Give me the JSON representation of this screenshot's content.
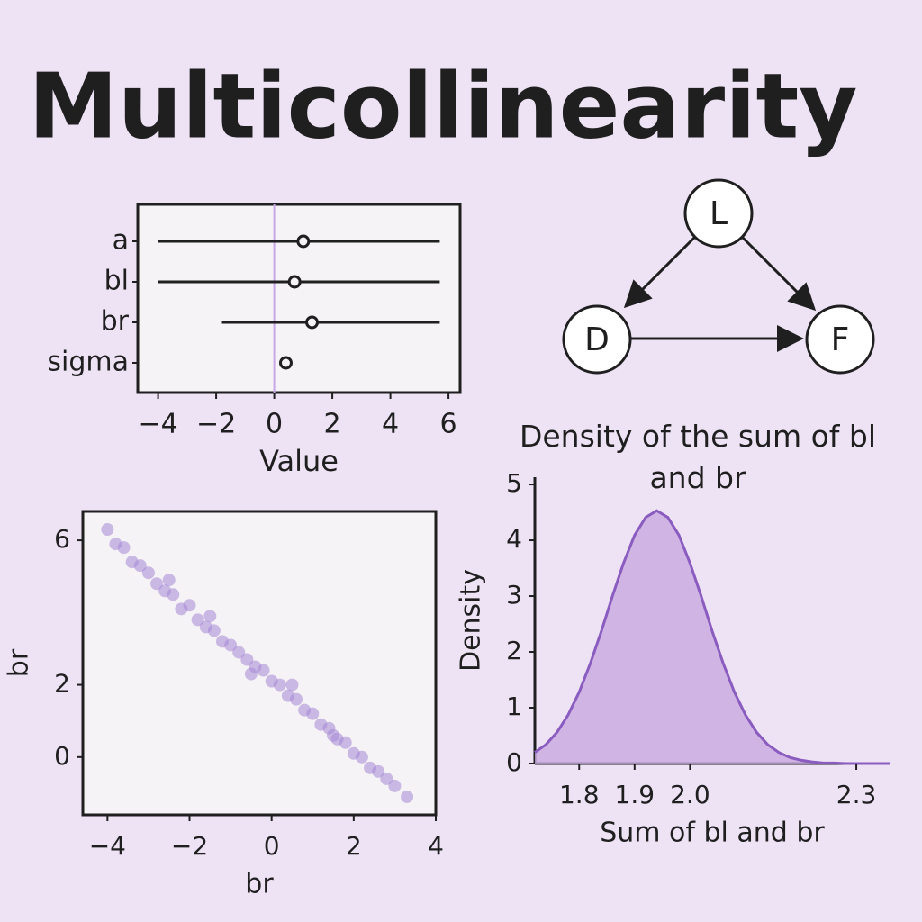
{
  "title": "Multicollinearity",
  "chart_data": [
    {
      "type": "interval",
      "categories": [
        "a",
        "bl",
        "br",
        "sigma"
      ],
      "values": [
        1.0,
        0.7,
        1.3,
        0.4
      ],
      "lower": [
        -4.0,
        -4.0,
        -1.8,
        null
      ],
      "upper": [
        5.7,
        5.7,
        5.7,
        null
      ],
      "color": "#1f1f1f",
      "vline": 0,
      "vline_color": "#c9a6e8",
      "xlim": [
        -4.7,
        6.4
      ],
      "xticks": [
        {
          "value": -4,
          "label": "−4"
        },
        {
          "value": -2,
          "label": "−2"
        },
        0,
        2,
        4,
        6
      ],
      "xlabel": "Value"
    },
    {
      "type": "scatter",
      "color": "#a586d6",
      "x": [
        -4.0,
        -3.8,
        -3.6,
        -3.4,
        -3.2,
        -3.0,
        -2.8,
        -2.6,
        -2.4,
        -2.2,
        -2.0,
        -1.8,
        -1.6,
        -1.4,
        -1.2,
        -1.0,
        -0.8,
        -0.6,
        -0.4,
        -0.2,
        0,
        0.2,
        0.4,
        0.6,
        0.8,
        1.0,
        1.2,
        1.4,
        1.6,
        1.8,
        2.0,
        2.2,
        2.4,
        2.6,
        2.8,
        3.0,
        3.3,
        -1.5,
        -0.5,
        0.5,
        1.5,
        -2.5
      ],
      "values": [
        6.3,
        5.9,
        5.8,
        5.4,
        5.3,
        5.1,
        4.8,
        4.6,
        4.5,
        4.1,
        4.2,
        3.8,
        3.6,
        3.5,
        3.2,
        3.1,
        2.9,
        2.7,
        2.5,
        2.4,
        2.1,
        2.0,
        1.7,
        1.6,
        1.3,
        1.2,
        0.9,
        0.8,
        0.5,
        0.4,
        0.1,
        0.0,
        -0.3,
        -0.4,
        -0.6,
        -0.8,
        -1.1,
        3.9,
        2.3,
        2.0,
        0.6,
        4.9
      ],
      "xlim": [
        -4.6,
        4.0
      ],
      "xticks": [
        {
          "value": -4,
          "label": "−4"
        },
        {
          "value": -2,
          "label": "−2"
        },
        0,
        2,
        4
      ],
      "ylim": [
        -1.6,
        6.8
      ],
      "yticks": [
        0,
        2,
        6
      ],
      "xlabel": "br",
      "ylabel": "br"
    },
    {
      "type": "density",
      "title": "Density of the sum of bl and br",
      "color": "#8a5cc0",
      "fill": "#c7a8e0",
      "x": [
        1.72,
        1.74,
        1.76,
        1.78,
        1.8,
        1.82,
        1.84,
        1.86,
        1.88,
        1.9,
        1.92,
        1.94,
        1.96,
        1.98,
        2.0,
        2.02,
        2.04,
        2.06,
        2.08,
        2.1,
        2.12,
        2.14,
        2.16,
        2.18,
        2.2,
        2.22,
        2.24,
        2.26,
        2.28,
        2.3,
        2.32,
        2.34,
        2.36
      ],
      "values": [
        0.2,
        0.34,
        0.56,
        0.87,
        1.28,
        1.79,
        2.37,
        3.0,
        3.59,
        4.09,
        4.41,
        4.53,
        4.41,
        4.09,
        3.59,
        3.0,
        2.37,
        1.79,
        1.28,
        0.87,
        0.56,
        0.34,
        0.2,
        0.11,
        0.06,
        0.03,
        0.01,
        0.01,
        0.0,
        0.0,
        0.0,
        0.0,
        0.0
      ],
      "xlim": [
        1.72,
        2.36
      ],
      "xticks": [
        1.8,
        1.9,
        {
          "value": 2,
          "label": "2.0"
        },
        2.3
      ],
      "ylim": [
        0,
        5.13
      ],
      "yticks": [
        0,
        1,
        2,
        3,
        4,
        5
      ],
      "xlabel": "Sum of bl and br",
      "ylabel": "Density"
    }
  ],
  "diagram": {
    "nodes": [
      {
        "label": "L"
      },
      {
        "label": "D"
      },
      {
        "label": "F"
      }
    ]
  }
}
